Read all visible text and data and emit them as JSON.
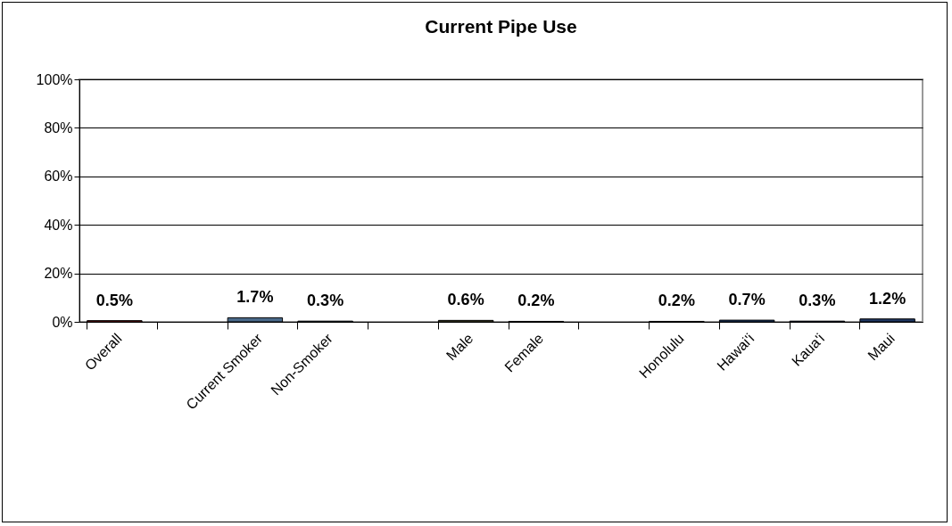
{
  "chart_data": {
    "type": "bar",
    "title": "Current Pipe Use",
    "categories": [
      "Overall",
      null,
      "Current Smoker",
      "Non-Smoker",
      null,
      "Male",
      "Female",
      null,
      "Honolulu",
      "Hawai'i",
      "Kaua'i",
      "Maui"
    ],
    "values": [
      0.5,
      null,
      1.7,
      0.3,
      null,
      0.6,
      0.2,
      null,
      0.2,
      0.7,
      0.3,
      1.2
    ],
    "colors": [
      "#800000",
      "#ffffff",
      "#4a6a8a",
      "#4a6a8a",
      "#ffffff",
      "#4f4f2f",
      "#4f4f2f",
      "#ffffff",
      "#1f3f6f",
      "#1f3f6f",
      "#1f3f6f",
      "#1f3864"
    ],
    "value_labels": [
      "0.5%",
      null,
      "1.7%",
      "0.3%",
      null,
      "0.6%",
      "0.2%",
      null,
      "0.2%",
      "0.7%",
      "0.3%",
      "1.2%"
    ],
    "ylim": [
      0,
      100
    ],
    "yticks": [
      {
        "value": 0,
        "label": "0%"
      },
      {
        "value": 20,
        "label": "20%"
      },
      {
        "value": 40,
        "label": "40%"
      },
      {
        "value": 60,
        "label": "60%"
      },
      {
        "value": 80,
        "label": "80%"
      },
      {
        "value": 100,
        "label": "100%"
      }
    ],
    "grid": "y"
  }
}
